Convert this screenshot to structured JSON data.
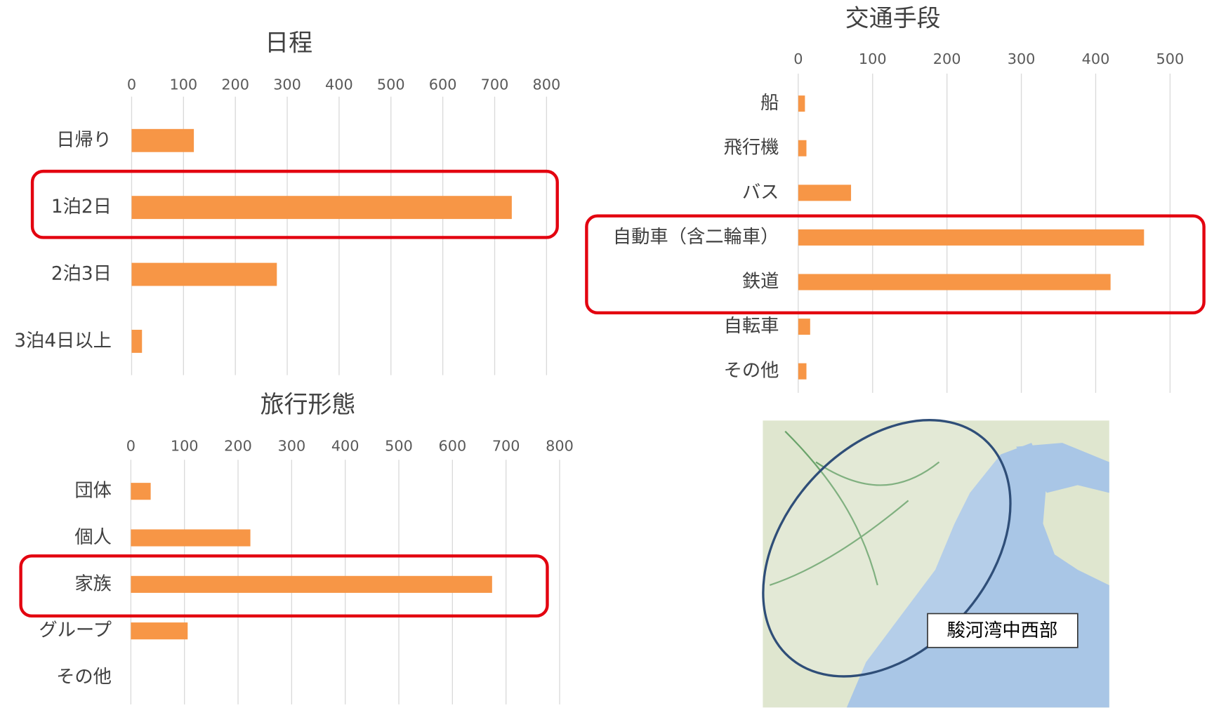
{
  "chart_data": [
    {
      "type": "bar",
      "orientation": "horizontal",
      "title": "日程",
      "categories": [
        "日帰り",
        "1泊2日",
        "2泊3日",
        "3泊4日以上"
      ],
      "values": [
        120,
        733,
        280,
        20
      ],
      "color": "#f79646",
      "xlim": [
        0,
        800
      ],
      "xticks": [
        0,
        100,
        200,
        300,
        400,
        500,
        600,
        700,
        800
      ],
      "grid": true
    },
    {
      "type": "bar",
      "orientation": "horizontal",
      "title": "交通手段",
      "categories": [
        "船",
        "飛行機",
        "バス",
        "自動車（含二輪車）",
        "鉄道",
        "自転車",
        "その他"
      ],
      "values": [
        9,
        11,
        71,
        465,
        420,
        16,
        11
      ],
      "color": "#f79646",
      "xlim": [
        0,
        500
      ],
      "xticks": [
        0,
        100,
        200,
        300,
        400,
        500
      ],
      "grid": true
    },
    {
      "type": "bar",
      "orientation": "horizontal",
      "title": "旅行形態",
      "categories": [
        "団体",
        "個人",
        "家族",
        "グループ",
        "その他"
      ],
      "values": [
        37,
        223,
        674,
        106,
        0
      ],
      "color": "#f79646",
      "xlim": [
        0,
        800
      ],
      "xticks": [
        0,
        100,
        200,
        300,
        400,
        500,
        600,
        700,
        800
      ],
      "grid": true
    }
  ],
  "map": {
    "label": "駿河湾中西部"
  }
}
